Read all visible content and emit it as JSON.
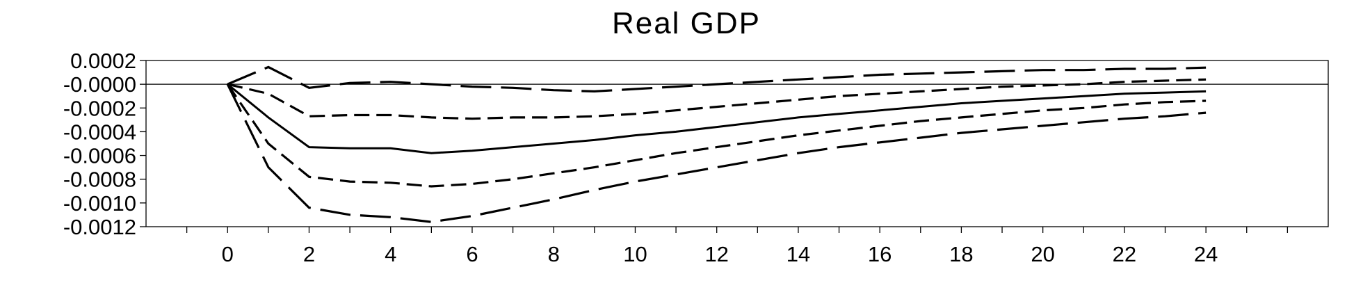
{
  "chart_data": {
    "type": "line",
    "title": "Real GDP",
    "xlabel": "",
    "ylabel": "",
    "xlim": [
      -2,
      27
    ],
    "ylim": [
      -0.0012,
      0.0002
    ],
    "xticks": [
      0,
      2,
      4,
      6,
      8,
      10,
      12,
      14,
      16,
      18,
      20,
      22,
      24
    ],
    "yticks": [
      0.0002,
      0.0,
      -0.0002,
      -0.0004,
      -0.0006,
      -0.0008,
      -0.001,
      -0.0012
    ],
    "ytick_labels": [
      "0.0002",
      "-0.0000",
      "-0.0002",
      "-0.0004",
      "-0.0006",
      "-0.0008",
      "-0.0010",
      "-0.0012"
    ],
    "zero_line": true,
    "grid": false,
    "legend": "none",
    "x": [
      0,
      1,
      2,
      3,
      4,
      5,
      6,
      7,
      8,
      9,
      10,
      11,
      12,
      13,
      14,
      15,
      16,
      17,
      18,
      19,
      20,
      21,
      22,
      23,
      24
    ],
    "series": [
      {
        "style": "long-dash",
        "values": [
          0.0,
          0.000145,
          -3e-05,
          1e-05,
          2e-05,
          0.0,
          -2e-05,
          -3e-05,
          -5e-05,
          -6e-05,
          -4e-05,
          -2e-05,
          0.0,
          2e-05,
          4e-05,
          6e-05,
          8e-05,
          9e-05,
          0.0001,
          0.00011,
          0.00012,
          0.00012,
          0.00013,
          0.00013,
          0.00014
        ]
      },
      {
        "style": "short-dash",
        "values": [
          0.0,
          -8e-05,
          -0.00027,
          -0.00026,
          -0.00026,
          -0.00028,
          -0.00029,
          -0.00028,
          -0.00028,
          -0.00027,
          -0.00025,
          -0.00022,
          -0.00019,
          -0.00016,
          -0.00013,
          -0.0001,
          -8e-05,
          -6e-05,
          -4e-05,
          -2e-05,
          -1e-05,
          0.0,
          2e-05,
          3e-05,
          4e-05
        ]
      },
      {
        "style": "solid",
        "values": [
          0.0,
          -0.00028,
          -0.00053,
          -0.00054,
          -0.00054,
          -0.00058,
          -0.00056,
          -0.00053,
          -0.0005,
          -0.00047,
          -0.00043,
          -0.0004,
          -0.00036,
          -0.00032,
          -0.00028,
          -0.00025,
          -0.00022,
          -0.00019,
          -0.00016,
          -0.00014,
          -0.00012,
          -0.0001,
          -8e-05,
          -7e-05,
          -6e-05
        ]
      },
      {
        "style": "short-dash",
        "values": [
          0.0,
          -0.0005,
          -0.00078,
          -0.00082,
          -0.00083,
          -0.00086,
          -0.00084,
          -0.0008,
          -0.00075,
          -0.0007,
          -0.00064,
          -0.00058,
          -0.00053,
          -0.00048,
          -0.00043,
          -0.00039,
          -0.00035,
          -0.00031,
          -0.00028,
          -0.00025,
          -0.00022,
          -0.0002,
          -0.00017,
          -0.00015,
          -0.00014
        ]
      },
      {
        "style": "long-dash",
        "values": [
          0.0,
          -0.0007,
          -0.00104,
          -0.0011,
          -0.00112,
          -0.00116,
          -0.00111,
          -0.00104,
          -0.00097,
          -0.00089,
          -0.00082,
          -0.00076,
          -0.0007,
          -0.00064,
          -0.00058,
          -0.00053,
          -0.00049,
          -0.00045,
          -0.00041,
          -0.00038,
          -0.00035,
          -0.00032,
          -0.00029,
          -0.00027,
          -0.00024
        ]
      }
    ]
  }
}
